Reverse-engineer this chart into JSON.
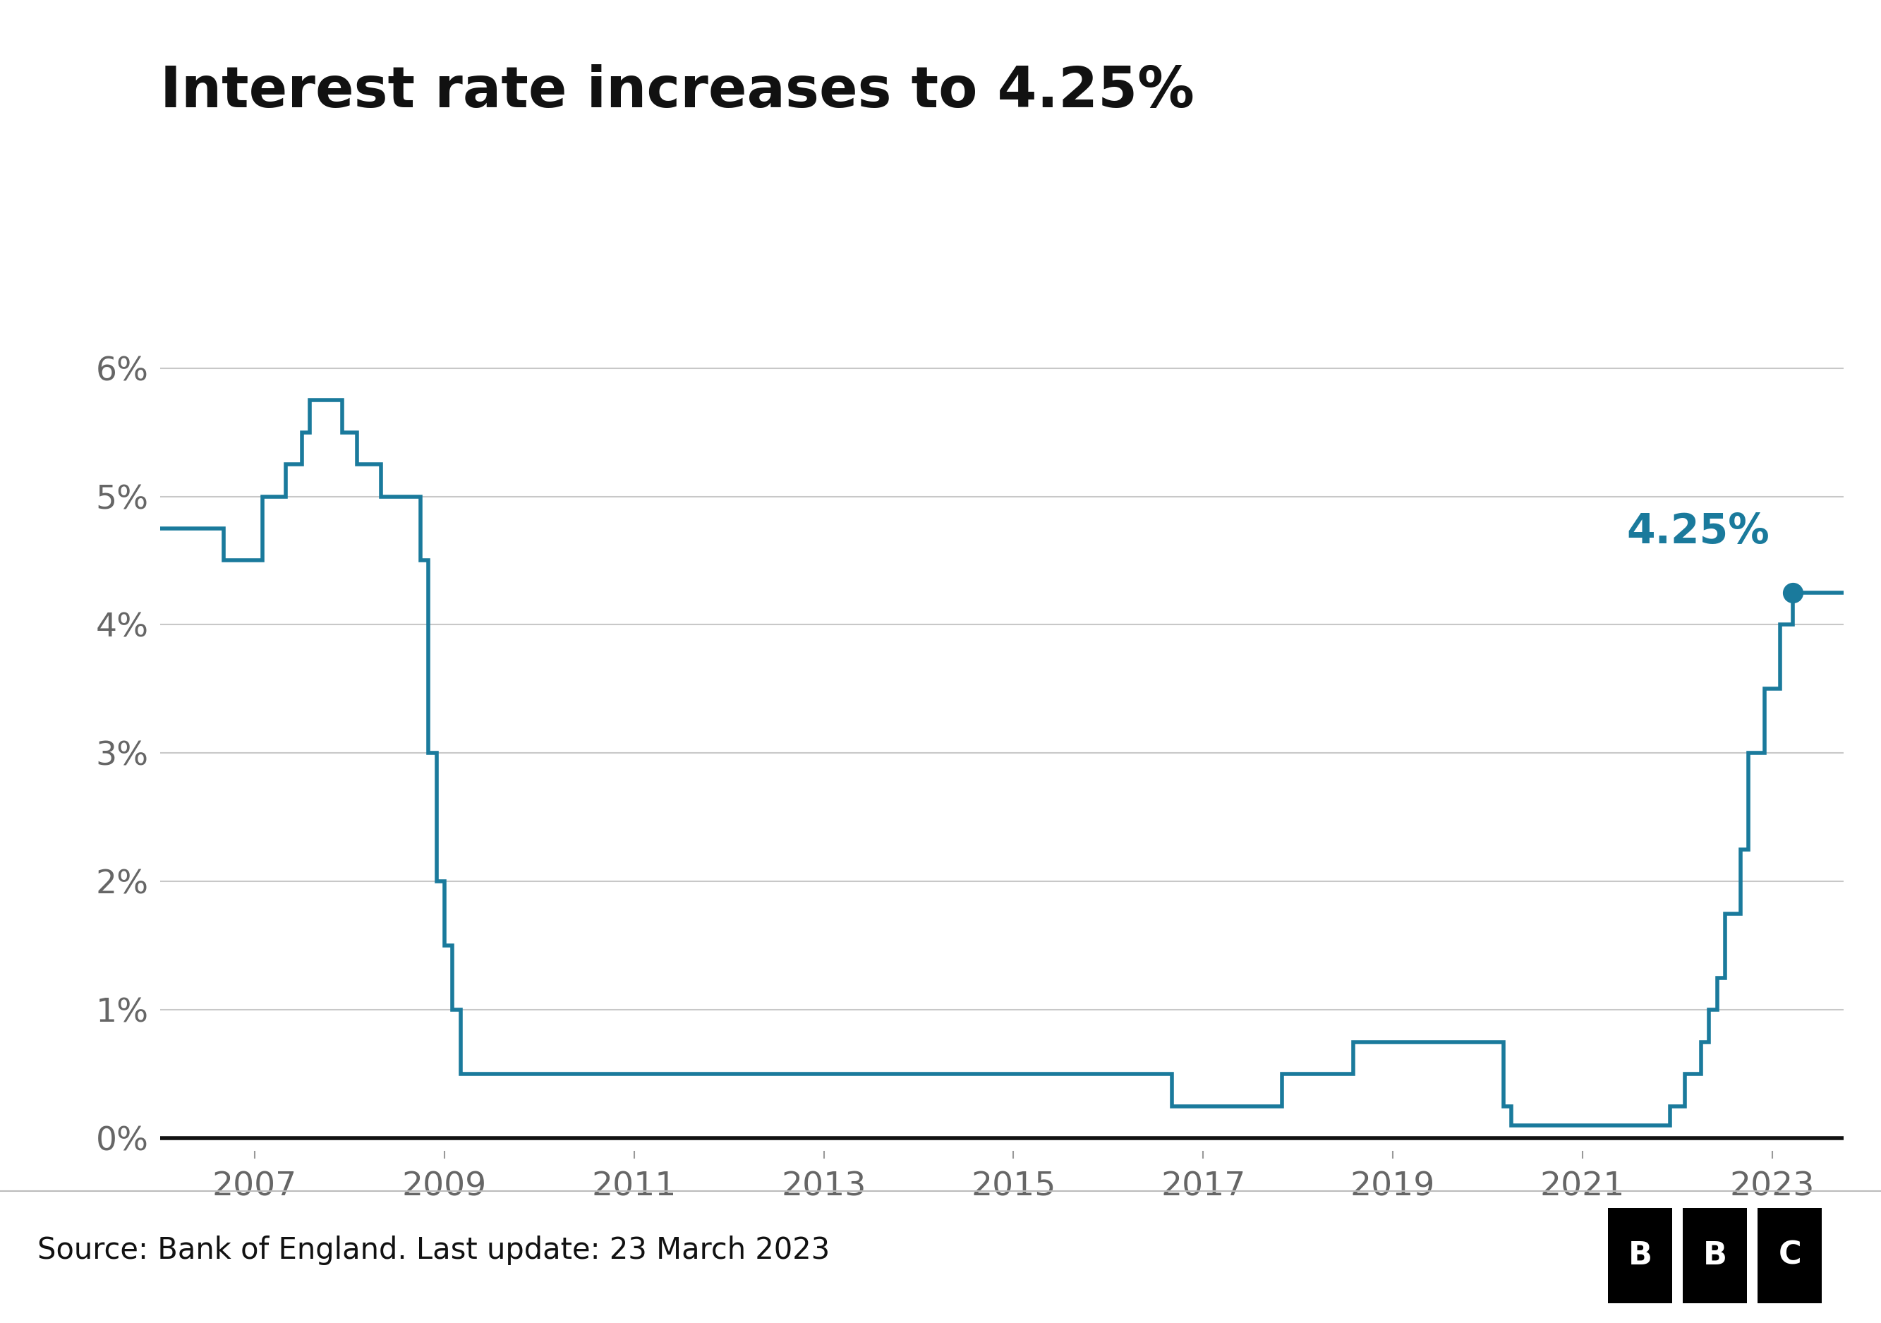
{
  "title": "Interest rate increases to 4.25%",
  "source_text": "Source: Bank of England. Last update: 23 March 2023",
  "line_color": "#1a7a9c",
  "dot_color": "#1a7a9c",
  "annotation_text": "4.25%",
  "annotation_color": "#1a7a9c",
  "background_color": "#ffffff",
  "grid_color": "#c8c8c8",
  "title_fontsize": 58,
  "tick_fontsize": 34,
  "annotation_fontsize": 42,
  "source_fontsize": 30,
  "ylim": [
    -0.1,
    6.6
  ],
  "yticks": [
    0,
    1,
    2,
    3,
    4,
    5,
    6
  ],
  "ytick_labels": [
    "0%",
    "1%",
    "2%",
    "3%",
    "4%",
    "5%",
    "6%"
  ],
  "rate_changes": [
    [
      2006.0,
      4.75
    ],
    [
      2006.67,
      4.5
    ],
    [
      2007.08,
      5.0
    ],
    [
      2007.33,
      5.25
    ],
    [
      2007.5,
      5.5
    ],
    [
      2007.58,
      5.75
    ],
    [
      2007.75,
      5.75
    ],
    [
      2007.92,
      5.5
    ],
    [
      2008.08,
      5.25
    ],
    [
      2008.33,
      5.0
    ],
    [
      2008.75,
      4.5
    ],
    [
      2008.83,
      3.0
    ],
    [
      2008.92,
      2.0
    ],
    [
      2009.0,
      1.5
    ],
    [
      2009.08,
      1.0
    ],
    [
      2009.17,
      0.5
    ],
    [
      2016.67,
      0.25
    ],
    [
      2017.83,
      0.5
    ],
    [
      2018.58,
      0.75
    ],
    [
      2020.17,
      0.25
    ],
    [
      2020.25,
      0.1
    ],
    [
      2021.92,
      0.25
    ],
    [
      2022.08,
      0.5
    ],
    [
      2022.25,
      0.75
    ],
    [
      2022.33,
      1.0
    ],
    [
      2022.42,
      1.25
    ],
    [
      2022.5,
      1.75
    ],
    [
      2022.67,
      2.25
    ],
    [
      2022.75,
      3.0
    ],
    [
      2022.92,
      3.5
    ],
    [
      2023.08,
      4.0
    ],
    [
      2023.22,
      4.25
    ]
  ],
  "xmin": 2006.0,
  "xmax": 2023.75,
  "xticks": [
    2007,
    2009,
    2011,
    2013,
    2015,
    2017,
    2019,
    2021,
    2023
  ],
  "xtick_labels": [
    "2007",
    "2009",
    "2011",
    "2013",
    "2015",
    "2017",
    "2019",
    "2021",
    "2023"
  ],
  "final_rate": 4.25,
  "bbc_box_color": "#000000",
  "bbc_text_color": "#ffffff"
}
